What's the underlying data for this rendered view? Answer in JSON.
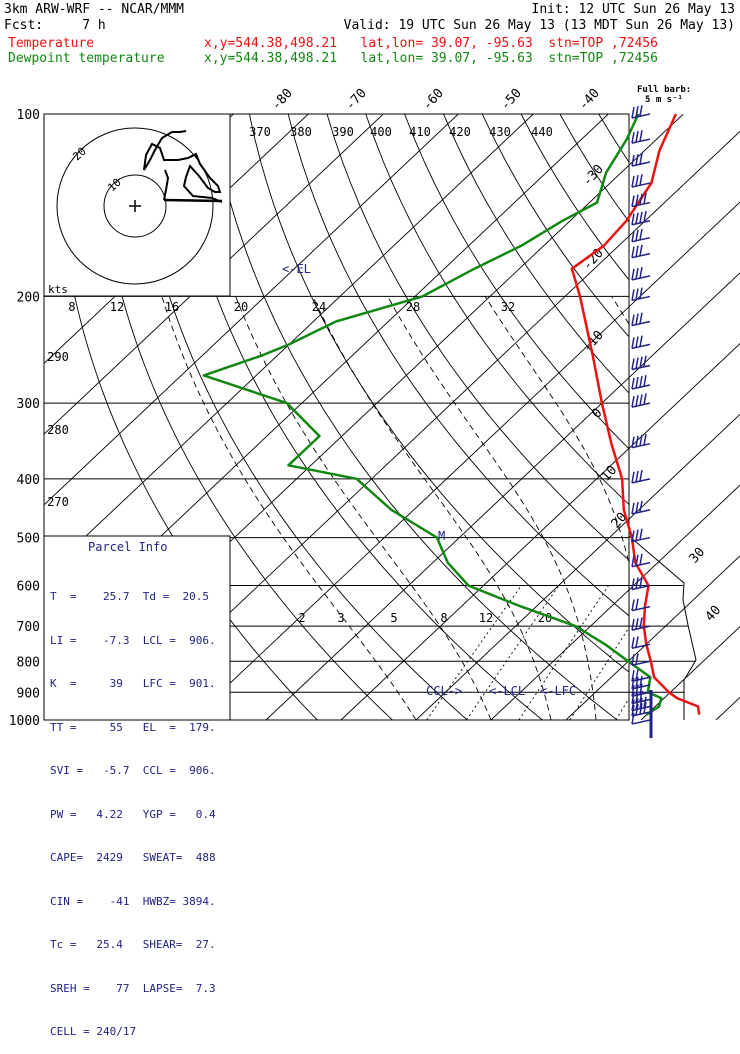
{
  "header": {
    "model": "3km ARW-WRF -- NCAR/MMM",
    "init": "Init: 12 UTC Sun 26 May 13",
    "fcst": "Fcst:     7 h",
    "valid": "Valid: 19 UTC Sun 26 May 13 (13 MDT Sun 26 May 13)",
    "temp_label": "Temperature",
    "dew_label": "Dewpoint temperature",
    "temp_loc": "x,y=544.38,498.21   lat,lon= 39.07, -95.63  stn=TOP ,72456",
    "dew_loc": "x,y=544.38,498.21   lat,lon= 39.07, -95.63  stn=TOP ,72456",
    "full_barb": "Full barb:",
    "full_barb_units": "5 m s⁻¹"
  },
  "colors": {
    "temperature": "#ee1111",
    "dewpoint": "#118811",
    "text_blue": "#222288",
    "barb": "#222288"
  },
  "parcel_info": {
    "title": "Parcel Info",
    "rows": [
      "T  =    25.7  Td =  20.5",
      "LI =    -7.3  LCL =  906.",
      "K  =     39   LFC =  901.",
      "TT =     55   EL  =  179.",
      "SVI =   -5.7  CCL =  906.",
      "PW =   4.22   YGP =   0.4",
      "CAPE=  2429   SWEAT=  488",
      "CIN =    -41  HWBZ= 3894.",
      "Tc =   25.4   SHEAR=  27.",
      "SREH =    77  LAPSE=  7.3",
      "CELL = 240/17"
    ]
  },
  "hodograph": {
    "units": "kts",
    "ring_labels": [
      "10",
      "20"
    ]
  },
  "annotations": {
    "el": "<-EL",
    "ccl": "CCL->",
    "lcl": "<-LCL",
    "lfc": "<-LFC",
    "m": "M"
  },
  "chart_data": {
    "type": "line",
    "subtype": "skew-T log-p sounding",
    "y_axis": "pressure (hPa), log scale",
    "ylim": [
      1000,
      100
    ],
    "pressure_ticks": [
      100,
      200,
      300,
      400,
      500,
      600,
      700,
      800,
      900,
      1000
    ],
    "isotherm_ticks_top": [
      "-80",
      "-70",
      "-60",
      "-50",
      "-40"
    ],
    "isotherm_ticks_right": [
      "-30",
      "-20",
      "-10",
      "0",
      "10",
      "20",
      "30",
      "40"
    ],
    "theta_labels_top": [
      "370",
      "380",
      "390",
      "400",
      "410",
      "420",
      "430",
      "440"
    ],
    "mixing_ratio_labels_upper": [
      "8",
      "12",
      "16",
      "20",
      "24",
      "28",
      "32"
    ],
    "mixing_ratio_labels_lower": [
      "2",
      "3",
      "5",
      "8",
      "12",
      "20"
    ],
    "theta_labels_left": [
      "290",
      "280",
      "270"
    ],
    "series": [
      {
        "name": "Temperature",
        "color": "#ee1111",
        "points": [
          [
            980,
            27
          ],
          [
            950,
            25.7
          ],
          [
            920,
            21.7
          ],
          [
            900,
            19.8
          ],
          [
            850,
            15.7
          ],
          [
            800,
            13
          ],
          [
            750,
            10
          ],
          [
            700,
            7.1
          ],
          [
            650,
            4.5
          ],
          [
            600,
            2
          ],
          [
            550,
            -3
          ],
          [
            500,
            -7
          ],
          [
            450,
            -12
          ],
          [
            400,
            -16.6
          ],
          [
            350,
            -23
          ],
          [
            300,
            -30
          ],
          [
            250,
            -38
          ],
          [
            200,
            -48
          ],
          [
            180,
            -53
          ],
          [
            165,
            -52
          ],
          [
            150,
            -52.5
          ],
          [
            130,
            -54.5
          ],
          [
            115,
            -58
          ],
          [
            100,
            -61
          ]
        ]
      },
      {
        "name": "Dewpoint temperature",
        "color": "#118811",
        "points": [
          [
            980,
            20
          ],
          [
            950,
            20.5
          ],
          [
            920,
            19.6
          ],
          [
            900,
            17
          ],
          [
            850,
            15.2
          ],
          [
            800,
            10
          ],
          [
            750,
            4.5
          ],
          [
            700,
            -2
          ],
          [
            650,
            -12
          ],
          [
            600,
            -22
          ],
          [
            550,
            -28
          ],
          [
            500,
            -33
          ],
          [
            450,
            -43
          ],
          [
            400,
            -52
          ],
          [
            380,
            -63
          ],
          [
            340,
            -63
          ],
          [
            300,
            -72
          ],
          [
            270,
            -87
          ],
          [
            250,
            -82
          ],
          [
            240,
            -80
          ],
          [
            220,
            -77
          ],
          [
            200,
            -69
          ],
          [
            180,
            -66
          ],
          [
            165,
            -63
          ],
          [
            150,
            -61
          ],
          [
            140,
            -59
          ],
          [
            125,
            -62
          ],
          [
            110,
            -64
          ],
          [
            100,
            -66
          ]
        ]
      }
    ],
    "wind_profile": [
      [
        1000,
        5
      ],
      [
        970,
        20
      ],
      [
        950,
        21
      ],
      [
        925,
        15
      ],
      [
        900,
        14
      ],
      [
        875,
        13
      ],
      [
        850,
        12
      ],
      [
        800,
        11
      ],
      [
        750,
        12
      ],
      [
        700,
        13
      ],
      [
        650,
        11
      ],
      [
        600,
        13
      ],
      [
        550,
        15
      ],
      [
        500,
        16
      ],
      [
        450,
        17
      ],
      [
        400,
        17
      ],
      [
        350,
        18
      ],
      [
        300,
        18
      ],
      [
        280,
        18
      ],
      [
        260,
        18
      ],
      [
        240,
        17
      ],
      [
        220,
        17
      ],
      [
        200,
        17
      ],
      [
        185,
        17
      ],
      [
        170,
        17
      ],
      [
        160,
        17
      ],
      [
        150,
        18
      ],
      [
        140,
        18
      ],
      [
        130,
        17
      ],
      [
        120,
        17
      ],
      [
        110,
        17
      ],
      [
        100,
        17
      ]
    ]
  }
}
